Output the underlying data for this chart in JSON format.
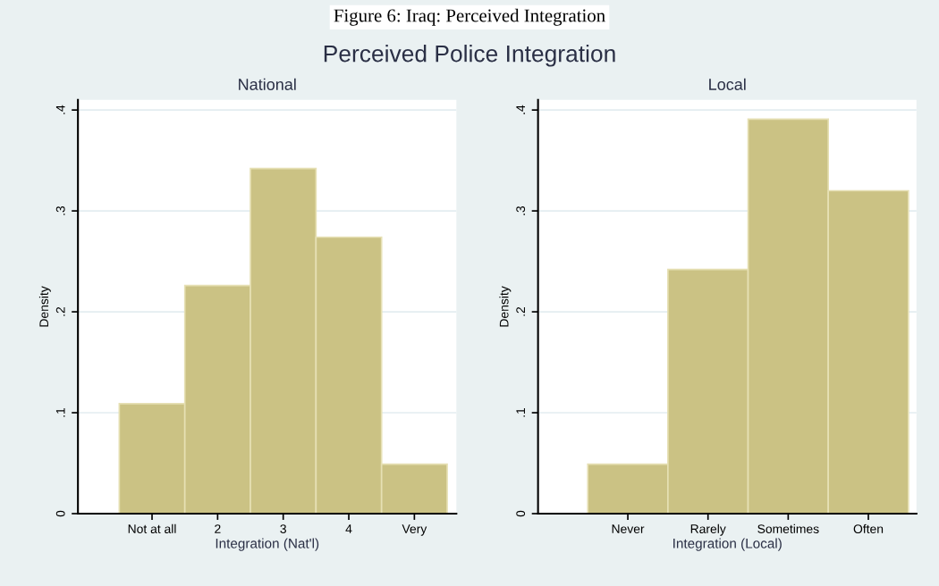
{
  "chart_data": [
    {
      "type": "histogram",
      "title": "National",
      "xlabel": "Integration (Nat'l)",
      "ylabel": "Density",
      "annotations": [
        "Figure 6: Iraq: Perceived Integration",
        "Perceived Police Integration"
      ],
      "bins": [
        0.5,
        1.5,
        2.5,
        3.5,
        4.5,
        5.5
      ],
      "values": [
        0.109,
        0.226,
        0.342,
        0.274,
        0.049
      ],
      "color": "#cbc284",
      "xlim": [
        -0.13,
        5.64
      ],
      "xticks": [
        {
          "value": 1,
          "label": "Not at all"
        },
        2,
        3,
        4,
        {
          "value": 5,
          "label": "Very"
        }
      ],
      "ylim": [
        0,
        0.41
      ],
      "yticks": [
        {
          "value": 0,
          "label": "0"
        },
        {
          "value": 0.1,
          "label": ".1"
        },
        {
          "value": 0.2,
          "label": ".2"
        },
        {
          "value": 0.3,
          "label": ".3"
        },
        {
          "value": 0.4,
          "label": ".4"
        }
      ],
      "grid": "y"
    },
    {
      "type": "bar",
      "title": "Local",
      "xlabel": "Integration (Local)",
      "ylabel": "Density",
      "categories": [
        "Never",
        "Rarely",
        "Sometimes",
        "Often"
      ],
      "values": [
        0.049,
        0.242,
        0.391,
        0.32
      ],
      "color": "#cbc284",
      "ylim": [
        0,
        0.41
      ],
      "yticks": [
        {
          "value": 0,
          "label": "0"
        },
        {
          "value": 0.1,
          "label": ".1"
        },
        {
          "value": 0.2,
          "label": ".2"
        },
        {
          "value": 0.3,
          "label": ".3"
        },
        {
          "value": 0.4,
          "label": ".4"
        }
      ],
      "grid": "y"
    }
  ]
}
